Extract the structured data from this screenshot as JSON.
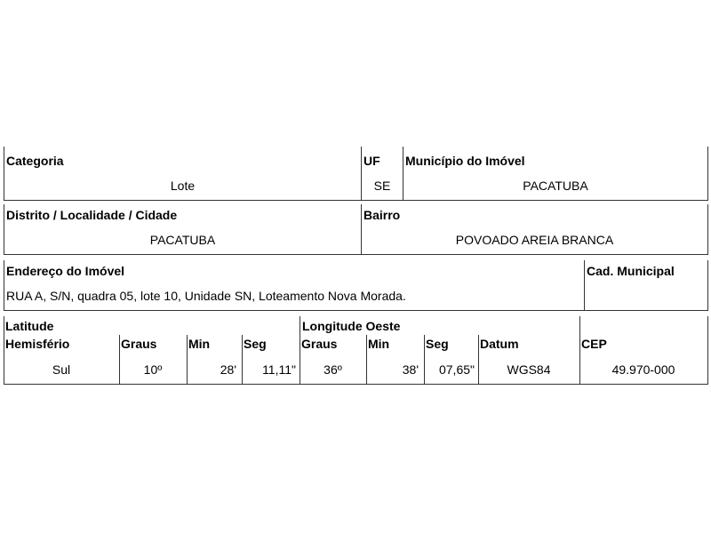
{
  "row1": {
    "categoria": {
      "label": "Categoria",
      "value": "Lote"
    },
    "uf": {
      "label": "UF",
      "value": "SE"
    },
    "municipio": {
      "label": "Município do Imóvel",
      "value": "PACATUBA"
    }
  },
  "row2": {
    "distrito": {
      "label": "Distrito / Localidade / Cidade",
      "value": "PACATUBA"
    },
    "bairro": {
      "label": "Bairro",
      "value": "POVOADO AREIA BRANCA"
    }
  },
  "row3": {
    "endereco": {
      "label": "Endereço do Imóvel",
      "value": "RUA A, S/N, quadra 05, lote 10, Unidade SN, Loteamento Nova Morada."
    },
    "cad": {
      "label": "Cad. Municipal",
      "value": ""
    }
  },
  "row4": {
    "latitude_label": "Latitude",
    "longitude_label": "Longitude Oeste",
    "columns": [
      {
        "label": "Hemisfério",
        "value": "Sul"
      },
      {
        "label": "Graus",
        "value": "10º"
      },
      {
        "label": "Min",
        "value": "28'"
      },
      {
        "label": "Seg",
        "value": "11,11\""
      },
      {
        "label": "Graus",
        "value": "36º"
      },
      {
        "label": "Min",
        "value": "38'"
      },
      {
        "label": "Seg",
        "value": "07,65\""
      },
      {
        "label": "Datum",
        "value": "WGS84"
      },
      {
        "label": "CEP",
        "value": "49.970-000"
      }
    ]
  }
}
